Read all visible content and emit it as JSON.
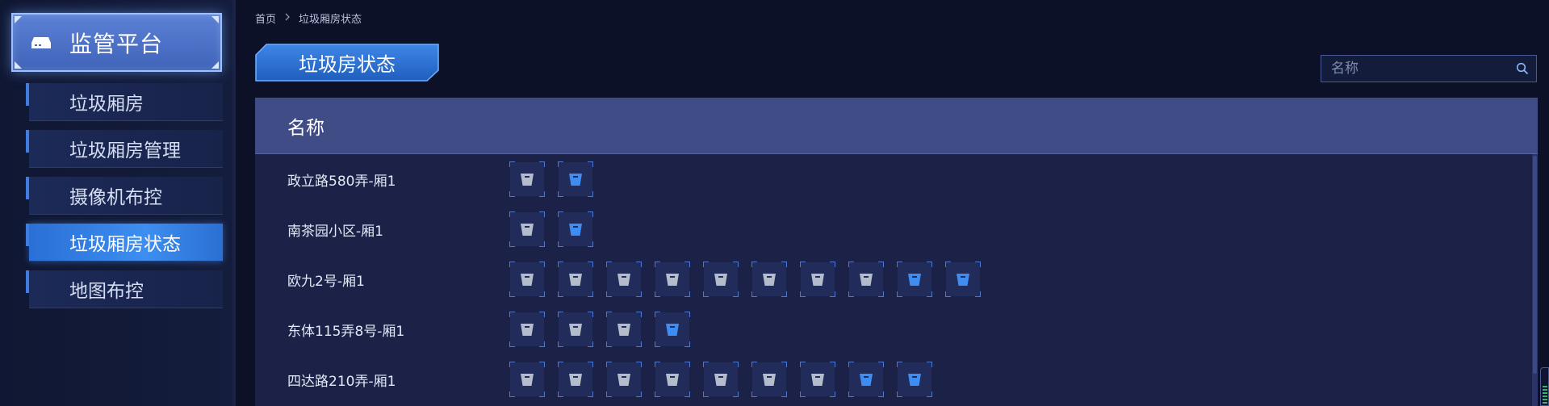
{
  "sidebar": {
    "title": "监管平台",
    "items": [
      {
        "label": "垃圾厢房",
        "active": false
      },
      {
        "label": "垃圾厢房管理",
        "active": false
      },
      {
        "label": "摄像机布控",
        "active": false
      },
      {
        "label": "垃圾厢房状态",
        "active": true
      },
      {
        "label": "地图布控",
        "active": false
      }
    ]
  },
  "breadcrumb": {
    "home": "首页",
    "current": "垃圾厢房状态"
  },
  "page_title": "垃圾房状态",
  "search": {
    "placeholder": "名称",
    "value": ""
  },
  "table": {
    "header": "名称",
    "rows": [
      {
        "name": "政立路580弄-厢1",
        "bins": [
          "gray",
          "blue"
        ]
      },
      {
        "name": "南茶园小区-厢1",
        "bins": [
          "gray",
          "blue"
        ]
      },
      {
        "name": "欧九2号-厢1",
        "bins": [
          "gray",
          "gray",
          "gray",
          "gray",
          "gray",
          "gray",
          "gray",
          "gray",
          "blue",
          "blue"
        ]
      },
      {
        "name": "东体115弄8号-厢1",
        "bins": [
          "gray",
          "gray",
          "gray",
          "blue"
        ]
      },
      {
        "name": "四达路210弄-厢1",
        "bins": [
          "gray",
          "gray",
          "gray",
          "gray",
          "gray",
          "gray",
          "gray",
          "blue",
          "blue"
        ]
      }
    ]
  },
  "icons": {
    "brand": "storage-box-icon",
    "breadcrumb_separator": "chevron-right-icon",
    "search": "search-icon",
    "bin": "trash-bin-icon"
  },
  "colors": {
    "bin_gray": "#b4bbcb",
    "bin_blue": "#3d8df2",
    "active_nav": "#3d8ef0",
    "header_bg": "#3f4c86"
  }
}
